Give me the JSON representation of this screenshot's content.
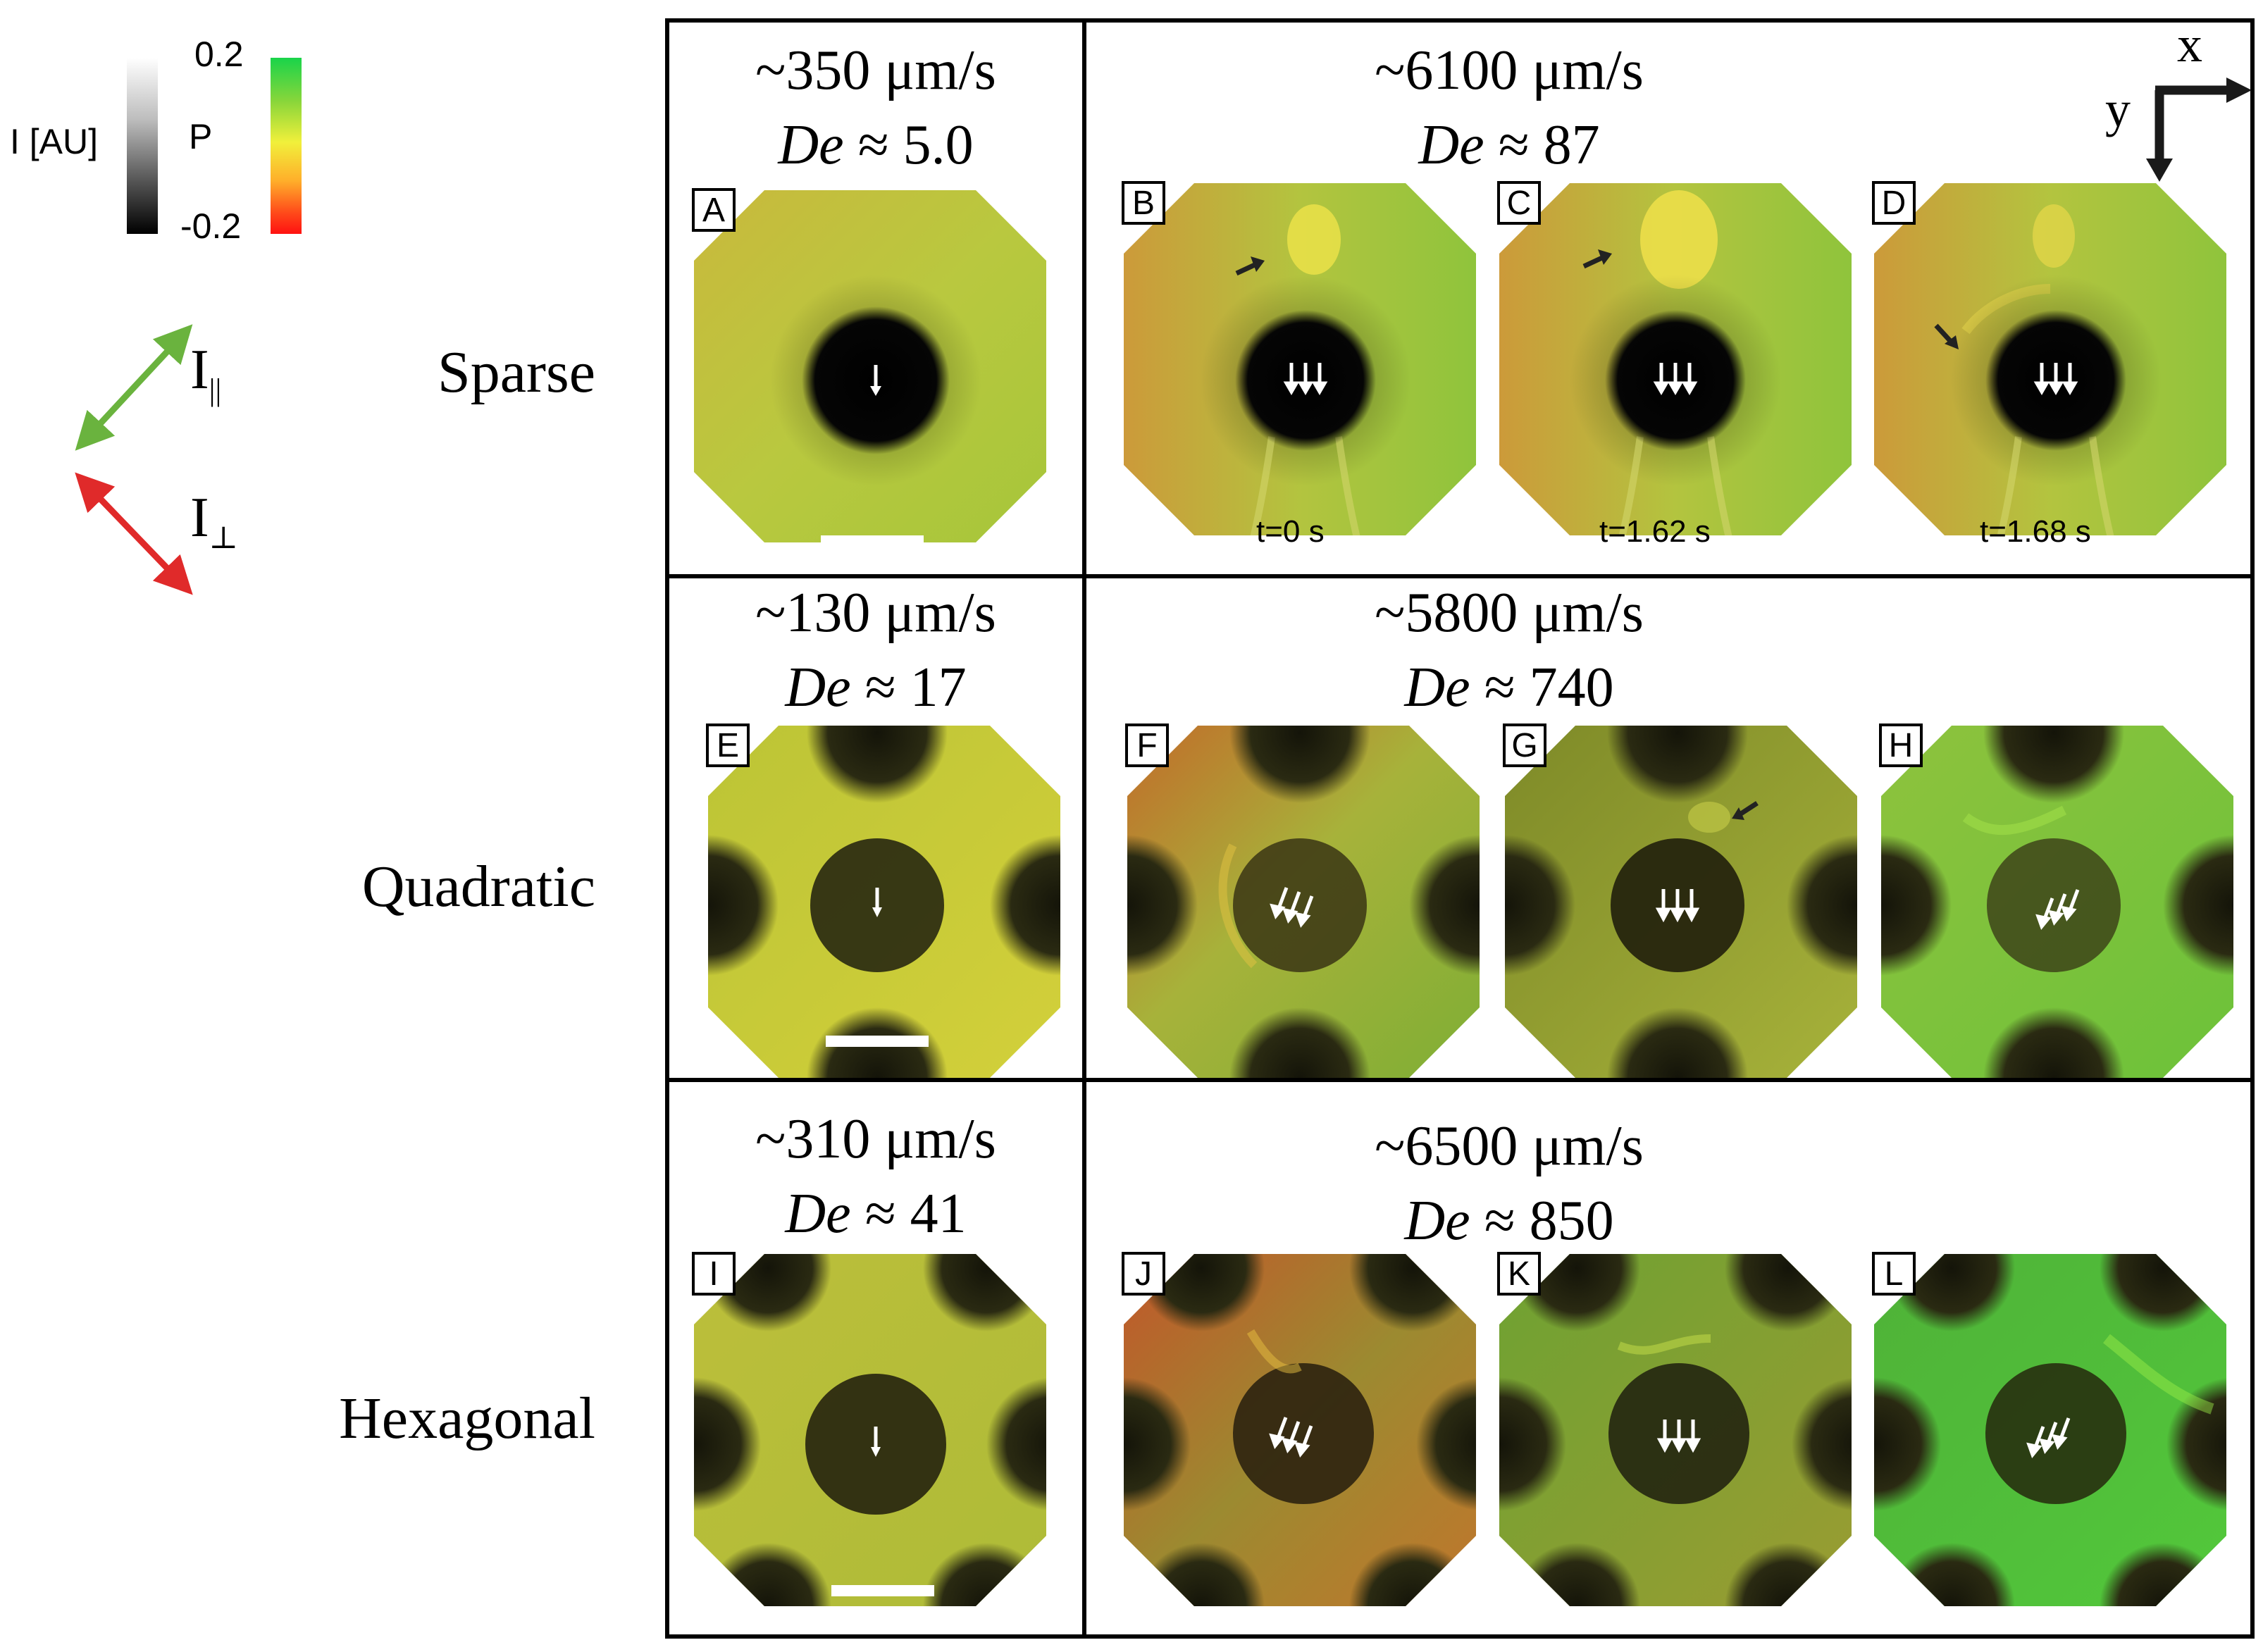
{
  "legend": {
    "intensity_label": "I [AU]",
    "polarization_label": "P",
    "scale_max": "0.2",
    "scale_min": "-0.2",
    "parallel_label": "I",
    "parallel_sub": "||",
    "perp_label": "I",
    "perp_sub": "⊥",
    "colors": {
      "parallel": "#6ab33e",
      "perp": "#e02a2a"
    }
  },
  "rows": {
    "sparse": "Sparse",
    "quadratic": "Quadratic",
    "hexagonal": "Hexagonal"
  },
  "headers": {
    "r1_left": {
      "speed": "~350 μm/s",
      "de": "De",
      "approx": "≈ 5.0"
    },
    "r1_right": {
      "speed": "~6100 μm/s",
      "de": "De",
      "approx": "≈ 87"
    },
    "r2_left": {
      "speed": "~130 μm/s",
      "de": "De",
      "approx": "≈ 17"
    },
    "r2_right": {
      "speed": "~5800 μm/s",
      "de": "De",
      "approx": "≈ 740"
    },
    "r3_left": {
      "speed": "~310 μm/s",
      "de": "De",
      "approx": "≈ 41"
    },
    "r3_right": {
      "speed": "~6500 μm/s",
      "de": "De",
      "approx": "≈ 850"
    }
  },
  "axes": {
    "x": "x",
    "y": "y"
  },
  "panels": {
    "A": "A",
    "B": "B",
    "C": "C",
    "D": "D",
    "E": "E",
    "F": "F",
    "G": "G",
    "H": "H",
    "I": "I",
    "J": "J",
    "K": "K",
    "L": "L"
  },
  "timestamps": {
    "B": "t=0 s",
    "C": "t=1.62 s",
    "D": "t=1.68 s"
  }
}
